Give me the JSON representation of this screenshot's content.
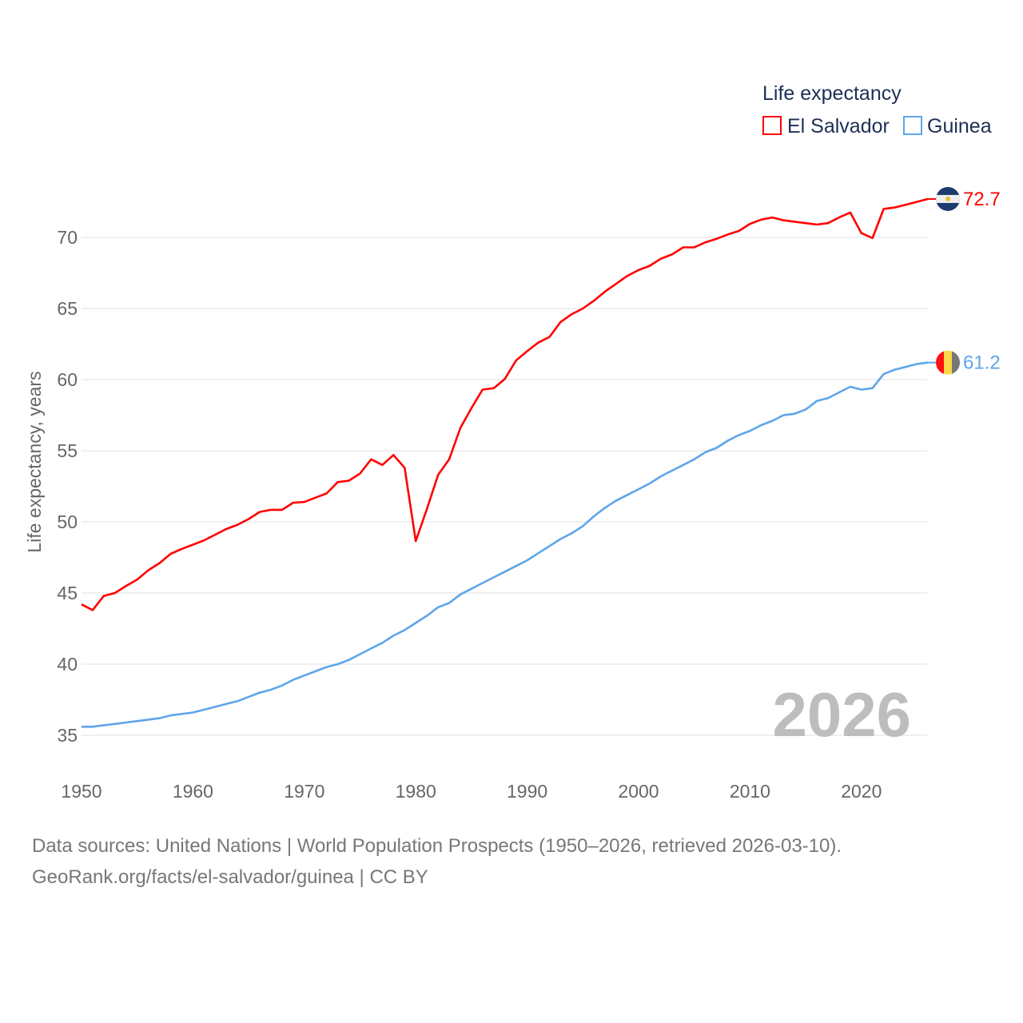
{
  "chart_data": {
    "type": "line",
    "legend_title": "Life expectancy",
    "legend_position": "top-right",
    "ylabel": "Life expectancy, years",
    "xlabel": "",
    "ylim": [
      33,
      73
    ],
    "xlim": [
      1950,
      2026
    ],
    "y_ticks": [
      35,
      40,
      45,
      50,
      55,
      60,
      65,
      70
    ],
    "x_ticks": [
      1950,
      1960,
      1970,
      1980,
      1990,
      2000,
      2010,
      2020
    ],
    "grid": true,
    "watermark_year": "2026",
    "x": [
      1950,
      1951,
      1952,
      1953,
      1954,
      1955,
      1956,
      1957,
      1958,
      1959,
      1960,
      1961,
      1962,
      1963,
      1964,
      1965,
      1966,
      1967,
      1968,
      1969,
      1970,
      1971,
      1972,
      1973,
      1974,
      1975,
      1976,
      1977,
      1978,
      1979,
      1980,
      1981,
      1982,
      1983,
      1984,
      1985,
      1986,
      1987,
      1988,
      1989,
      1990,
      1991,
      1992,
      1993,
      1994,
      1995,
      1996,
      1997,
      1998,
      1999,
      2000,
      2001,
      2002,
      2003,
      2004,
      2005,
      2006,
      2007,
      2008,
      2009,
      2010,
      2011,
      2012,
      2013,
      2014,
      2015,
      2016,
      2017,
      2018,
      2019,
      2020,
      2021,
      2022,
      2023,
      2024,
      2025,
      2026
    ],
    "series": [
      {
        "name": "El Salvador",
        "color": "#ff0000",
        "end_label": "72.7",
        "flag": "el-salvador",
        "values": [
          44.2,
          43.8,
          44.8,
          45.0,
          45.5,
          45.95,
          46.6,
          47.1,
          47.75,
          48.1,
          48.4,
          48.7,
          49.1,
          49.5,
          49.8,
          50.2,
          50.7,
          50.85,
          50.85,
          51.35,
          51.4,
          51.7,
          52.0,
          52.8,
          52.9,
          53.4,
          54.4,
          54.0,
          54.7,
          53.8,
          48.65,
          50.9,
          53.3,
          54.4,
          56.6,
          58.0,
          59.3,
          59.4,
          60.05,
          61.35,
          62.0,
          62.6,
          63.0,
          64.05,
          64.6,
          65.0,
          65.55,
          66.2,
          66.75,
          67.3,
          67.7,
          68.0,
          68.5,
          68.8,
          69.3,
          69.3,
          69.65,
          69.9,
          70.2,
          70.45,
          70.95,
          71.25,
          71.4,
          71.2,
          71.1,
          71.0,
          70.9,
          71.0,
          71.4,
          71.75,
          70.3,
          69.95,
          72.0,
          72.1,
          72.3,
          72.5,
          72.7
        ]
      },
      {
        "name": "Guinea",
        "color": "#5ea5ea",
        "end_label": "61.2",
        "flag": "guinea",
        "values": [
          35.6,
          35.6,
          35.7,
          35.8,
          35.9,
          36.0,
          36.1,
          36.2,
          36.4,
          36.5,
          36.6,
          36.8,
          37.0,
          37.2,
          37.4,
          37.7,
          38.0,
          38.2,
          38.5,
          38.9,
          39.2,
          39.5,
          39.8,
          40.0,
          40.3,
          40.7,
          41.1,
          41.5,
          42.0,
          42.4,
          42.9,
          43.4,
          44.0,
          44.3,
          44.9,
          45.3,
          45.7,
          46.1,
          46.5,
          46.9,
          47.3,
          47.8,
          48.3,
          48.8,
          49.2,
          49.7,
          50.4,
          51.0,
          51.5,
          51.9,
          52.3,
          52.7,
          53.2,
          53.6,
          54.0,
          54.4,
          54.9,
          55.2,
          55.7,
          56.1,
          56.4,
          56.8,
          57.1,
          57.5,
          57.6,
          57.9,
          58.5,
          58.7,
          59.1,
          59.5,
          59.3,
          59.4,
          60.4,
          60.7,
          60.9,
          61.1,
          61.2
        ]
      }
    ]
  },
  "footer": {
    "sources": "Data sources: United Nations | World Population Prospects (1950–2026, retrieved 2026-03-10).",
    "credit": "GeoRank.org/facts/el-salvador/guinea | CC BY"
  }
}
